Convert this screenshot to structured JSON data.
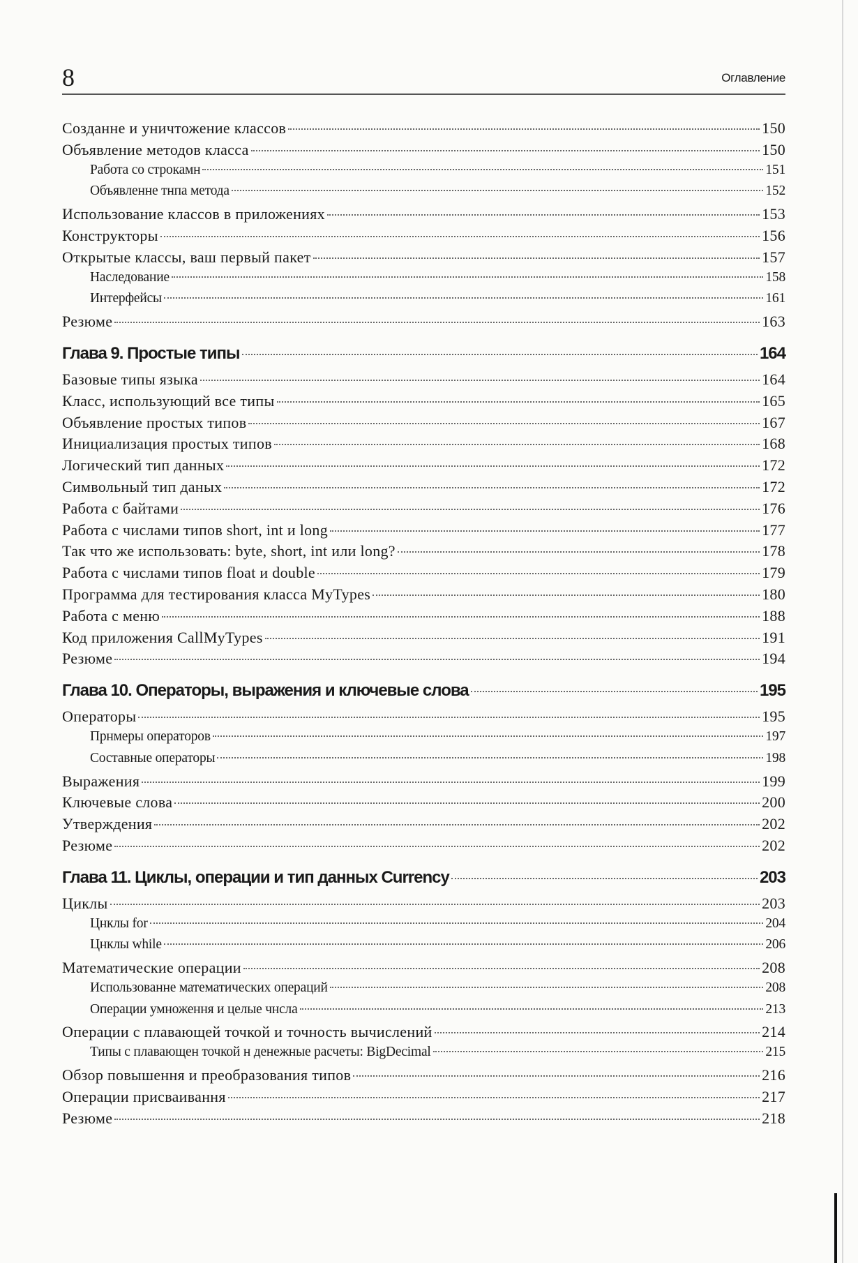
{
  "header": {
    "page_number": "8",
    "running_title": "Оглавление"
  },
  "entries": [
    {
      "title": "Созданне и уничтожение классов",
      "page": "150",
      "level": 1
    },
    {
      "title": "Объявление методов класса",
      "page": "150",
      "level": 1
    },
    {
      "title": "Работа со строкамн",
      "page": "151",
      "level": 2
    },
    {
      "title": "Объявленне тнпа метода",
      "page": "152",
      "level": 2
    },
    {
      "title": "Использование классов в приложениях",
      "page": "153",
      "level": 1
    },
    {
      "title": "Конструкторы",
      "page": "156",
      "level": 1
    },
    {
      "title": "Открытые классы, ваш первый пакет",
      "page": "157",
      "level": 1
    },
    {
      "title": "Наследование",
      "page": "158",
      "level": 2
    },
    {
      "title": "Интерфейсы",
      "page": "161",
      "level": 2
    },
    {
      "title": "Резюме",
      "page": "163",
      "level": 1
    },
    {
      "title": "Глава 9. Простые типы",
      "page": "164",
      "level": 0
    },
    {
      "title": "Базовые типы языка",
      "page": "164",
      "level": 1
    },
    {
      "title": "Класс, использующий все типы",
      "page": "165",
      "level": 1
    },
    {
      "title": "Объявление простых типов",
      "page": "167",
      "level": 1
    },
    {
      "title": "Инициализация простых типов",
      "page": "168",
      "level": 1
    },
    {
      "title": "Логический тип данных",
      "page": "172",
      "level": 1
    },
    {
      "title": "Символьный тип даных",
      "page": "172",
      "level": 1
    },
    {
      "title": "Работа с байтами",
      "page": "176",
      "level": 1
    },
    {
      "title": "Работа с числами типов short, int и long",
      "page": "177",
      "level": 1
    },
    {
      "title": "Так что же использовать: byte, short, int или long?",
      "page": "178",
      "level": 1
    },
    {
      "title": "Работа с числами типов float и double",
      "page": "179",
      "level": 1
    },
    {
      "title": "Программа для тестирования класса MyTypes",
      "page": "180",
      "level": 1
    },
    {
      "title": "Работа с меню",
      "page": "188",
      "level": 1
    },
    {
      "title": "Код приложения CallMyTypes",
      "page": "191",
      "level": 1
    },
    {
      "title": "Резюме",
      "page": "194",
      "level": 1
    },
    {
      "title": "Глава 10. Операторы, выражения и ключевые слова",
      "page": "195",
      "level": 0
    },
    {
      "title": "Операторы",
      "page": "195",
      "level": 1
    },
    {
      "title": "Прнмеры операторов",
      "page": "197",
      "level": 2
    },
    {
      "title": "Составные операторы",
      "page": "198",
      "level": 2
    },
    {
      "title": "Выражения",
      "page": "199",
      "level": 1
    },
    {
      "title": "Ключевые слова",
      "page": "200",
      "level": 1
    },
    {
      "title": "Утверждения",
      "page": "202",
      "level": 1
    },
    {
      "title": "Резюме",
      "page": "202",
      "level": 1
    },
    {
      "title": "Глава 11. Циклы, операции и тип данных Currency",
      "page": "203",
      "level": 0
    },
    {
      "title": "Циклы",
      "page": "203",
      "level": 1
    },
    {
      "title": "Цнклы for",
      "page": "204",
      "level": 2
    },
    {
      "title": "Цнклы while",
      "page": "206",
      "level": 2
    },
    {
      "title": "Математические операции",
      "page": "208",
      "level": 1
    },
    {
      "title": "Использованне математических операций",
      "page": "208",
      "level": 2
    },
    {
      "title": "Операции умноження и целые чнсла",
      "page": "213",
      "level": 2
    },
    {
      "title": "Операции с плавающей точкой и точность вычислений",
      "page": "214",
      "level": 1
    },
    {
      "title": "Типы с плавающен точкой н денежные расчеты: BigDecimal",
      "page": "215",
      "level": 2
    },
    {
      "title": "Обзор повышення и преобразования типов",
      "page": "216",
      "level": 1
    },
    {
      "title": "Операции присваивання",
      "page": "217",
      "level": 1
    },
    {
      "title": "Резюме",
      "page": "218",
      "level": 1
    }
  ]
}
